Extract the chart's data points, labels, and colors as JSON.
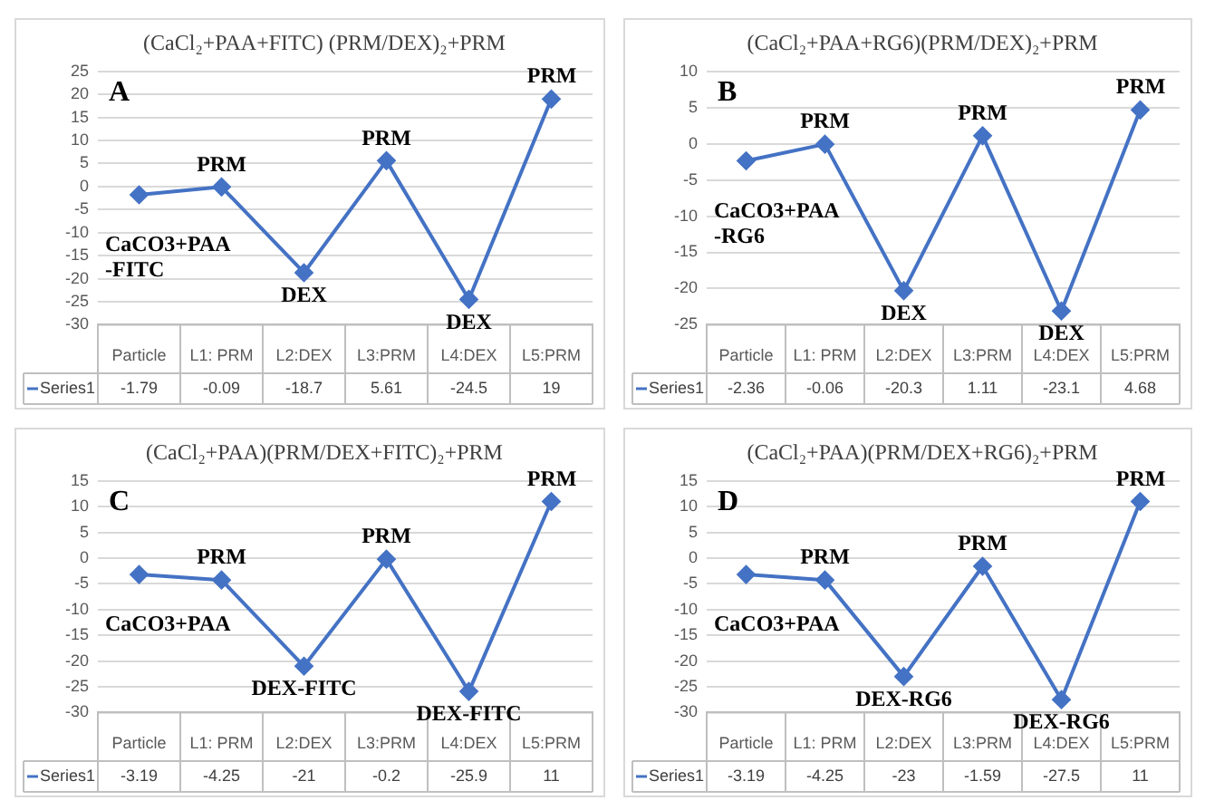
{
  "chart_data": [
    {
      "type": "line",
      "title": "(CaCl₂+PAA+FITC) (PRM/DEX)₂+PRM",
      "categories": [
        "Particle",
        "L1: PRM",
        "L2:DEX",
        "L3:PRM",
        "L4:DEX",
        "L5:PRM"
      ],
      "series": [
        {
          "name": "Series1",
          "color": "#4472c4",
          "values": [
            -1.79,
            -0.09,
            -18.7,
            5.61,
            -24.5,
            19
          ]
        }
      ],
      "ylim": [
        -30,
        25
      ],
      "yticks": [
        -30,
        -25,
        -20,
        -15,
        -10,
        -5,
        0,
        5,
        10,
        15,
        20,
        25
      ],
      "grid": "y",
      "marker": "diamond",
      "data_labels": true,
      "legend": "bottom",
      "annotations": [
        "A",
        {
          "text": "CaCO3+PAA\n-FITC",
          "x": "Particle",
          "y": -1.79
        },
        {
          "text": "PRM",
          "x": "L1: PRM",
          "y": -0.09
        },
        {
          "text": "DEX",
          "x": "L2:DEX",
          "y": -18.7
        },
        {
          "text": "PRM",
          "x": "L3:PRM",
          "y": 5.61
        },
        {
          "text": "DEX",
          "x": "L4:DEX",
          "y": -24.5
        },
        {
          "text": "PRM",
          "x": "L5:PRM",
          "y": 19
        }
      ]
    },
    {
      "type": "line",
      "title": "(CaCl₂+PAA+RG6)(PRM/DEX)₂+PRM",
      "categories": [
        "Particle",
        "L1: PRM",
        "L2:DEX",
        "L3:PRM",
        "L4:DEX",
        "L5:PRM"
      ],
      "series": [
        {
          "name": "Series1",
          "color": "#4472c4",
          "values": [
            -2.36,
            -0.06,
            -20.3,
            1.11,
            -23.1,
            4.68
          ]
        }
      ],
      "ylim": [
        -25,
        10
      ],
      "yticks": [
        -25,
        -20,
        -15,
        -10,
        -5,
        0,
        5,
        10
      ],
      "grid": "y",
      "marker": "diamond",
      "data_labels": true,
      "legend": "bottom",
      "annotations": [
        "B",
        {
          "text": "CaCO3+PAA\n-RG6",
          "x": "Particle",
          "y": -2.36
        },
        {
          "text": "PRM",
          "x": "L1: PRM",
          "y": -0.06
        },
        {
          "text": "DEX",
          "x": "L2:DEX",
          "y": -20.3
        },
        {
          "text": "PRM",
          "x": "L3:PRM",
          "y": 1.11
        },
        {
          "text": "DEX",
          "x": "L4:DEX",
          "y": -23.1
        },
        {
          "text": "PRM",
          "x": "L5:PRM",
          "y": 4.68
        }
      ]
    },
    {
      "type": "line",
      "title": "(CaCl₂+PAA)(PRM/DEX+FITC)₂+PRM",
      "categories": [
        "Particle",
        "L1: PRM",
        "L2:DEX",
        "L3:PRM",
        "L4:DEX",
        "L5:PRM"
      ],
      "series": [
        {
          "name": "Series1",
          "color": "#4472c4",
          "values": [
            -3.19,
            -4.25,
            -21,
            -0.2,
            -25.9,
            11
          ]
        }
      ],
      "ylim": [
        -30,
        15
      ],
      "yticks": [
        -30,
        -25,
        -20,
        -15,
        -10,
        -5,
        0,
        5,
        10,
        15
      ],
      "grid": "y",
      "marker": "diamond",
      "data_labels": true,
      "legend": "bottom",
      "annotations": [
        "C",
        {
          "text": "CaCO3+PAA",
          "x": "Particle",
          "y": -3.19
        },
        {
          "text": "PRM",
          "x": "L1: PRM",
          "y": -4.25
        },
        {
          "text": "DEX-FITC",
          "x": "L2:DEX",
          "y": -21
        },
        {
          "text": "PRM",
          "x": "L3:PRM",
          "y": -0.2
        },
        {
          "text": "DEX-FITC",
          "x": "L4:DEX",
          "y": -25.9
        },
        {
          "text": "PRM",
          "x": "L5:PRM",
          "y": 11
        }
      ]
    },
    {
      "type": "line",
      "title": "(CaCl₂+PAA)(PRM/DEX+RG6)₂+PRM",
      "categories": [
        "Particle",
        "L1: PRM",
        "L2:DEX",
        "L3:PRM",
        "L4:DEX",
        "L5:PRM"
      ],
      "series": [
        {
          "name": "Series1",
          "color": "#4472c4",
          "values": [
            -3.19,
            -4.25,
            -23,
            -1.59,
            -27.5,
            11
          ]
        }
      ],
      "ylim": [
        -30,
        15
      ],
      "yticks": [
        -30,
        -25,
        -20,
        -15,
        -10,
        -5,
        0,
        5,
        10,
        15
      ],
      "grid": "y",
      "marker": "diamond",
      "data_labels": true,
      "legend": "bottom",
      "annotations": [
        "D",
        {
          "text": "CaCO3+PAA",
          "x": "Particle",
          "y": -3.19
        },
        {
          "text": "PRM",
          "x": "L1: PRM",
          "y": -4.25
        },
        {
          "text": "DEX-RG6",
          "x": "L2:DEX",
          "y": -23
        },
        {
          "text": "PRM",
          "x": "L3:PRM",
          "y": -1.59
        },
        {
          "text": "DEX-RG6",
          "x": "L4:DEX",
          "y": -27.5
        },
        {
          "text": "PRM",
          "x": "L5:PRM",
          "y": 11
        }
      ]
    }
  ]
}
